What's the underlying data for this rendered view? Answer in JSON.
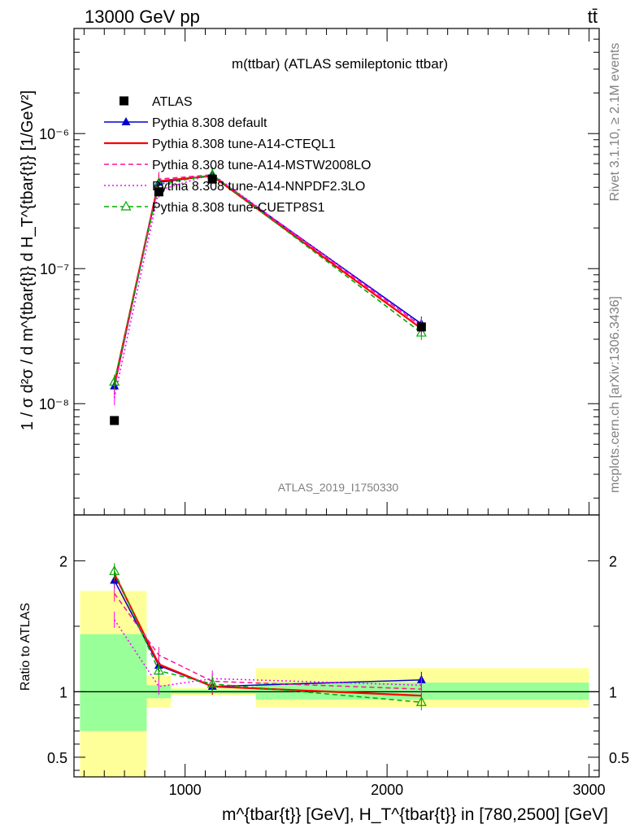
{
  "header": {
    "left": "13000 GeV pp",
    "right": "tt̄"
  },
  "side_labels": {
    "rivet": "Rivet 3.1.10, ≥ 2.1M events",
    "mcplots": "mcplots.cern.ch [arXiv:1306.3436]"
  },
  "chart_data": [
    {
      "type": "line",
      "title": "m(ttbar) (ATLAS semileptonic ttbar)",
      "watermark": "ATLAS_2019_I1750330",
      "ylabel": "1 / σ d²σ / d m^{tbar{t}} d H_T^{tbar{t}} [1/GeV²]",
      "yscale": "log",
      "ylim": [
        1.5e-09,
        6e-06
      ],
      "y_ticks": [
        {
          "value": 1e-08,
          "label": "10⁻⁸"
        },
        {
          "value": 1e-07,
          "label": "10⁻⁷"
        },
        {
          "value": 1e-06,
          "label": "10⁻⁶"
        }
      ],
      "xlim": [
        450,
        3050
      ],
      "legend_position": "top-left",
      "data": {
        "name": "ATLAS",
        "x": [
          650,
          870,
          1135,
          2170
        ],
        "y": [
          7.5e-09,
          3.7e-07,
          4.6e-07,
          3.7e-08
        ]
      },
      "series": [
        {
          "name": "Pythia 8.308 default",
          "color": "#0000cc",
          "style": "solid",
          "marker": "triangle-filled",
          "x": [
            650,
            870,
            1135,
            2170
          ],
          "y": [
            1.35e-08,
            4.35e-07,
            4.9e-07,
            3.9e-08
          ]
        },
        {
          "name": "Pythia 8.308 tune-A14-CTEQL1",
          "color": "#ff0000",
          "style": "solid",
          "marker": "none",
          "x": [
            650,
            870,
            1135,
            2170
          ],
          "y": [
            1.42e-08,
            4.45e-07,
            4.85e-07,
            3.6e-08
          ]
        },
        {
          "name": "Pythia 8.308 tune-A14-MSTW2008LO",
          "color": "#ff1493",
          "style": "dashed",
          "marker": "none",
          "x": [
            650,
            870,
            1135,
            2170
          ],
          "y": [
            1.3e-08,
            4.6e-07,
            4.95e-07,
            3.75e-08
          ]
        },
        {
          "name": "Pythia 8.308 tune-A14-NNPDF2.3LO",
          "color": "#ff00ff",
          "style": "dotted",
          "marker": "none",
          "x": [
            650,
            870,
            1135,
            2170
          ],
          "y": [
            1.1e-08,
            3.8e-07,
            5e-07,
            3.8e-08
          ]
        },
        {
          "name": "Pythia 8.308 tune-CUETP8S1",
          "color": "#00aa00",
          "style": "dashed",
          "marker": "triangle-open",
          "x": [
            650,
            870,
            1135,
            2170
          ],
          "y": [
            1.45e-08,
            4.2e-07,
            4.95e-07,
            3.35e-08
          ]
        }
      ]
    },
    {
      "type": "line",
      "ylabel": "Ratio to ATLAS",
      "ylim": [
        0.35,
        2.35
      ],
      "y_ticks": [
        {
          "value": 0.5,
          "label": "0.5"
        },
        {
          "value": 1,
          "label": "1"
        },
        {
          "value": 2,
          "label": "2"
        }
      ],
      "xlim": [
        450,
        3050
      ],
      "x_ticks": [
        {
          "value": 1000,
          "label": "1000"
        },
        {
          "value": 2000,
          "label": "2000"
        },
        {
          "value": 3000,
          "label": "3000"
        }
      ],
      "xlabel": "m^{tbar{t}} [GeV], H_T^{tbar{t}} in [780,2500] [GeV]",
      "bands": [
        {
          "x0": 480,
          "x1": 810,
          "green": [
            0.7,
            1.44
          ],
          "yellow": [
            0.35,
            1.77
          ]
        },
        {
          "x0": 810,
          "x1": 930,
          "green": [
            0.95,
            1.05
          ],
          "yellow": [
            0.88,
            1.12
          ]
        },
        {
          "x0": 930,
          "x1": 1350,
          "green": [
            0.985,
            1.015
          ],
          "yellow": [
            0.97,
            1.03
          ]
        },
        {
          "x0": 1350,
          "x1": 3000,
          "green": [
            0.94,
            1.07
          ],
          "yellow": [
            0.88,
            1.18
          ]
        }
      ],
      "series": [
        {
          "name": "Pythia 8.308 default",
          "color": "#0000cc",
          "style": "solid",
          "x": [
            650,
            870,
            1135,
            2170
          ],
          "y": [
            1.85,
            1.2,
            1.04,
            1.09
          ]
        },
        {
          "name": "Pythia 8.308 tune-A14-CTEQL1",
          "color": "#ff0000",
          "style": "solid",
          "x": [
            650,
            870,
            1135,
            2170
          ],
          "y": [
            1.9,
            1.21,
            1.04,
            0.97
          ]
        },
        {
          "name": "Pythia 8.308 tune-A14-MSTW2008LO",
          "color": "#ff1493",
          "style": "dashed",
          "x": [
            650,
            870,
            1135,
            2170
          ],
          "y": [
            1.75,
            1.28,
            1.08,
            1.02
          ]
        },
        {
          "name": "Pythia 8.308 tune-A14-NNPDF2.3LO",
          "color": "#ff00ff",
          "style": "dotted",
          "x": [
            650,
            870,
            1135,
            2170
          ],
          "y": [
            1.55,
            1.04,
            1.1,
            1.05
          ]
        },
        {
          "name": "Pythia 8.308 tune-CUETP8S1",
          "color": "#00aa00",
          "style": "dashed",
          "x": [
            650,
            870,
            1135,
            2170
          ],
          "y": [
            1.92,
            1.16,
            1.06,
            0.92
          ]
        }
      ]
    }
  ]
}
